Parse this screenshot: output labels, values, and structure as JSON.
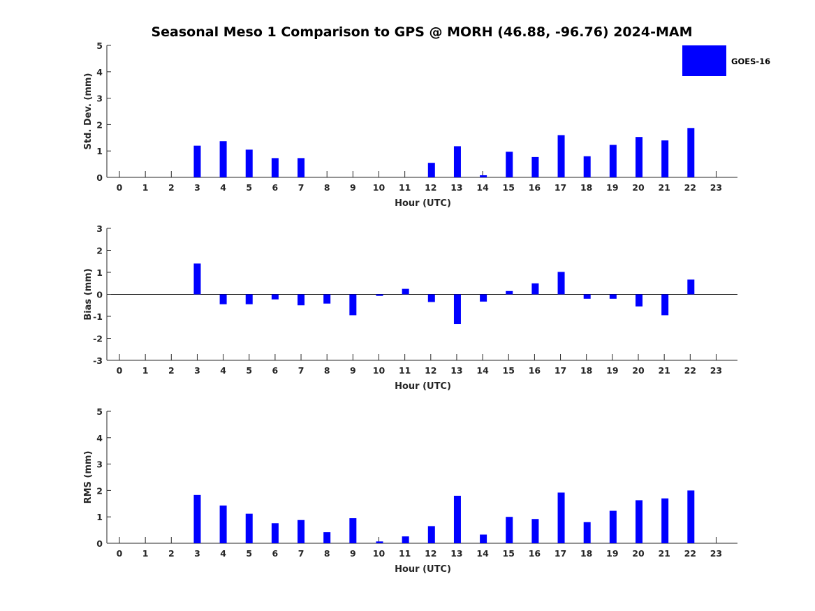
{
  "figure": {
    "title": "Seasonal Meso 1 Comparison to GPS @ MORH (46.88, -96.76) 2024-MAM",
    "legend": {
      "label": "GOES-16",
      "color": "#0000ff",
      "placement": "top-right"
    }
  },
  "chart_data": [
    {
      "id": "std",
      "type": "bar",
      "ylabel": "Std. Dev. (mm)",
      "xlabel": "Hour (UTC)",
      "ylim": [
        0,
        5
      ],
      "yticks": [
        "0",
        "1",
        "2",
        "3",
        "4",
        "5"
      ],
      "categories": [
        "0",
        "1",
        "2",
        "3",
        "4",
        "5",
        "6",
        "7",
        "8",
        "9",
        "10",
        "11",
        "12",
        "13",
        "14",
        "15",
        "16",
        "17",
        "18",
        "19",
        "20",
        "21",
        "22",
        "23"
      ],
      "series": [
        {
          "name": "GOES-16",
          "values": [
            null,
            null,
            null,
            1.2,
            1.37,
            1.05,
            0.73,
            0.73,
            null,
            null,
            null,
            null,
            0.55,
            1.18,
            0.08,
            0.97,
            0.77,
            1.6,
            0.8,
            1.23,
            1.53,
            1.4,
            1.87,
            null
          ]
        }
      ]
    },
    {
      "id": "bias",
      "type": "bar",
      "ylabel": "Bias (mm)",
      "xlabel": "Hour (UTC)",
      "ylim": [
        -3,
        3
      ],
      "yticks": [
        "-3",
        "-2",
        "-1",
        "0",
        "1",
        "2",
        "3"
      ],
      "categories": [
        "0",
        "1",
        "2",
        "3",
        "4",
        "5",
        "6",
        "7",
        "8",
        "9",
        "10",
        "11",
        "12",
        "13",
        "14",
        "15",
        "16",
        "17",
        "18",
        "19",
        "20",
        "21",
        "22",
        "23"
      ],
      "series": [
        {
          "name": "GOES-16",
          "values": [
            null,
            null,
            null,
            1.4,
            -0.45,
            -0.45,
            -0.23,
            -0.5,
            -0.42,
            -0.95,
            -0.07,
            0.25,
            -0.35,
            -1.35,
            -0.33,
            0.15,
            0.5,
            1.02,
            -0.2,
            -0.2,
            -0.55,
            -0.95,
            0.67,
            null
          ]
        }
      ]
    },
    {
      "id": "rms",
      "type": "bar",
      "ylabel": "RMS (mm)",
      "xlabel": "Hour (UTC)",
      "ylim": [
        0,
        5
      ],
      "yticks": [
        "0",
        "1",
        "2",
        "3",
        "4",
        "5"
      ],
      "categories": [
        "0",
        "1",
        "2",
        "3",
        "4",
        "5",
        "6",
        "7",
        "8",
        "9",
        "10",
        "11",
        "12",
        "13",
        "14",
        "15",
        "16",
        "17",
        "18",
        "19",
        "20",
        "21",
        "22",
        "23"
      ],
      "series": [
        {
          "name": "GOES-16",
          "values": [
            null,
            null,
            null,
            1.83,
            1.43,
            1.12,
            0.76,
            0.88,
            0.42,
            0.95,
            0.07,
            0.26,
            0.65,
            1.8,
            0.33,
            1.0,
            0.92,
            1.92,
            0.8,
            1.23,
            1.63,
            1.7,
            2.0,
            null
          ]
        }
      ]
    }
  ]
}
